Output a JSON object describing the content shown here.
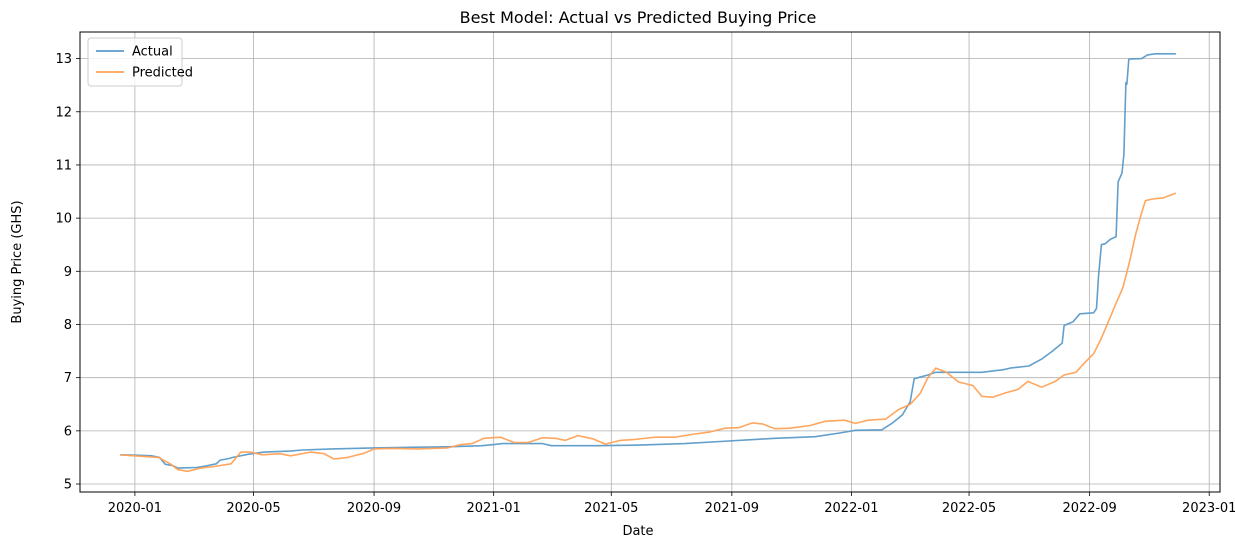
{
  "chart_data": {
    "type": "line",
    "title": "Best Model: Actual vs Predicted Buying Price",
    "xlabel": "Date",
    "ylabel": "Buying Price (GHS)",
    "x_is_date": true,
    "xlim": [
      "2019-11-06",
      "2023-01-12"
    ],
    "ylim": [
      4.85,
      13.5
    ],
    "xticks": [
      "2020-01",
      "2020-05",
      "2020-09",
      "2021-01",
      "2021-05",
      "2021-09",
      "2022-01",
      "2022-05",
      "2022-09",
      "2023-01"
    ],
    "xtick_dates": [
      "2020-01-01",
      "2020-05-01",
      "2020-09-01",
      "2021-01-01",
      "2021-05-01",
      "2021-09-01",
      "2022-01-01",
      "2022-05-01",
      "2022-09-01",
      "2023-01-01"
    ],
    "yticks": [
      5,
      6,
      7,
      8,
      9,
      10,
      11,
      12,
      13
    ],
    "grid": true,
    "legend_position": "top-left",
    "series": [
      {
        "name": "Actual",
        "color": "#5b9ac8",
        "points": [
          [
            "2019-12-17",
            5.55
          ],
          [
            "2020-01-06",
            5.54
          ],
          [
            "2020-01-18",
            5.53
          ],
          [
            "2020-01-26",
            5.5
          ],
          [
            "2020-02-01",
            5.37
          ],
          [
            "2020-02-08",
            5.35
          ],
          [
            "2020-02-14",
            5.3
          ],
          [
            "2020-03-04",
            5.31
          ],
          [
            "2020-03-14",
            5.34
          ],
          [
            "2020-03-24",
            5.38
          ],
          [
            "2020-03-28",
            5.45
          ],
          [
            "2020-04-06",
            5.48
          ],
          [
            "2020-04-10",
            5.5
          ],
          [
            "2020-04-26",
            5.56
          ],
          [
            "2020-05-12",
            5.6
          ],
          [
            "2020-06-07",
            5.62
          ],
          [
            "2020-06-20",
            5.64
          ],
          [
            "2020-07-20",
            5.66
          ],
          [
            "2020-09-01",
            5.68
          ],
          [
            "2020-10-07",
            5.69
          ],
          [
            "2020-11-15",
            5.7
          ],
          [
            "2020-12-20",
            5.72
          ],
          [
            "2020-12-31",
            5.74
          ],
          [
            "2021-01-10",
            5.76
          ],
          [
            "2021-02-20",
            5.76
          ],
          [
            "2021-03-01",
            5.72
          ],
          [
            "2021-04-15",
            5.72
          ],
          [
            "2021-05-25",
            5.73
          ],
          [
            "2021-06-10",
            5.74
          ],
          [
            "2021-07-15",
            5.76
          ],
          [
            "2021-08-20",
            5.8
          ],
          [
            "2021-09-25",
            5.84
          ],
          [
            "2021-10-15",
            5.86
          ],
          [
            "2021-11-25",
            5.89
          ],
          [
            "2021-12-20",
            5.96
          ],
          [
            "2022-01-05",
            6.01
          ],
          [
            "2022-02-01",
            6.02
          ],
          [
            "2022-02-12",
            6.15
          ],
          [
            "2022-02-22",
            6.3
          ],
          [
            "2022-03-02",
            6.55
          ],
          [
            "2022-03-06",
            6.98
          ],
          [
            "2022-03-20",
            7.05
          ],
          [
            "2022-03-28",
            7.1
          ],
          [
            "2022-05-14",
            7.1
          ],
          [
            "2022-06-05",
            7.15
          ],
          [
            "2022-06-12",
            7.18
          ],
          [
            "2022-07-01",
            7.22
          ],
          [
            "2022-07-14",
            7.35
          ],
          [
            "2022-07-25",
            7.5
          ],
          [
            "2022-08-04",
            7.65
          ],
          [
            "2022-08-06",
            7.98
          ],
          [
            "2022-08-15",
            8.05
          ],
          [
            "2022-08-22",
            8.2
          ],
          [
            "2022-09-05",
            8.22
          ],
          [
            "2022-09-08",
            8.3
          ],
          [
            "2022-09-10",
            8.9
          ],
          [
            "2022-09-13",
            9.5
          ],
          [
            "2022-09-17",
            9.52
          ],
          [
            "2022-09-22",
            9.6
          ],
          [
            "2022-09-28",
            9.65
          ],
          [
            "2022-09-30",
            10.68
          ],
          [
            "2022-10-04",
            10.85
          ],
          [
            "2022-10-06",
            11.2
          ],
          [
            "2022-10-08",
            12.55
          ],
          [
            "2022-10-09",
            12.52
          ],
          [
            "2022-10-11",
            12.99
          ],
          [
            "2022-10-24",
            13.0
          ],
          [
            "2022-10-30",
            13.07
          ],
          [
            "2022-11-07",
            13.09
          ],
          [
            "2022-11-28",
            13.09
          ]
        ]
      },
      {
        "name": "Predicted",
        "color": "#ffa156",
        "points": [
          [
            "2019-12-17",
            5.55
          ],
          [
            "2020-01-10",
            5.52
          ],
          [
            "2020-01-25",
            5.5
          ],
          [
            "2020-02-06",
            5.38
          ],
          [
            "2020-02-14",
            5.27
          ],
          [
            "2020-02-24",
            5.24
          ],
          [
            "2020-03-08",
            5.3
          ],
          [
            "2020-03-22",
            5.33
          ],
          [
            "2020-04-08",
            5.38
          ],
          [
            "2020-04-18",
            5.6
          ],
          [
            "2020-04-28",
            5.6
          ],
          [
            "2020-05-10",
            5.55
          ],
          [
            "2020-05-28",
            5.57
          ],
          [
            "2020-06-08",
            5.53
          ],
          [
            "2020-06-28",
            5.6
          ],
          [
            "2020-07-12",
            5.57
          ],
          [
            "2020-07-22",
            5.47
          ],
          [
            "2020-08-05",
            5.5
          ],
          [
            "2020-08-22",
            5.58
          ],
          [
            "2020-09-01",
            5.66
          ],
          [
            "2020-09-22",
            5.67
          ],
          [
            "2020-10-15",
            5.66
          ],
          [
            "2020-11-15",
            5.68
          ],
          [
            "2020-11-28",
            5.74
          ],
          [
            "2020-12-10",
            5.76
          ],
          [
            "2020-12-22",
            5.86
          ],
          [
            "2021-01-08",
            5.88
          ],
          [
            "2021-01-22",
            5.78
          ],
          [
            "2021-02-05",
            5.78
          ],
          [
            "2021-02-20",
            5.87
          ],
          [
            "2021-03-05",
            5.86
          ],
          [
            "2021-03-15",
            5.82
          ],
          [
            "2021-03-28",
            5.91
          ],
          [
            "2021-04-12",
            5.85
          ],
          [
            "2021-04-25",
            5.75
          ],
          [
            "2021-05-10",
            5.82
          ],
          [
            "2021-05-25",
            5.84
          ],
          [
            "2021-06-15",
            5.88
          ],
          [
            "2021-07-05",
            5.88
          ],
          [
            "2021-07-25",
            5.94
          ],
          [
            "2021-08-10",
            5.98
          ],
          [
            "2021-08-25",
            6.05
          ],
          [
            "2021-09-08",
            6.06
          ],
          [
            "2021-09-22",
            6.15
          ],
          [
            "2021-10-02",
            6.13
          ],
          [
            "2021-10-15",
            6.04
          ],
          [
            "2021-10-30",
            6.05
          ],
          [
            "2021-11-20",
            6.1
          ],
          [
            "2021-12-05",
            6.18
          ],
          [
            "2021-12-25",
            6.2
          ],
          [
            "2022-01-05",
            6.14
          ],
          [
            "2022-01-18",
            6.2
          ],
          [
            "2022-02-05",
            6.22
          ],
          [
            "2022-02-18",
            6.4
          ],
          [
            "2022-03-02",
            6.5
          ],
          [
            "2022-03-12",
            6.7
          ],
          [
            "2022-03-20",
            7.0
          ],
          [
            "2022-03-28",
            7.18
          ],
          [
            "2022-04-08",
            7.1
          ],
          [
            "2022-04-20",
            6.92
          ],
          [
            "2022-05-05",
            6.85
          ],
          [
            "2022-05-14",
            6.65
          ],
          [
            "2022-05-25",
            6.63
          ],
          [
            "2022-06-08",
            6.72
          ],
          [
            "2022-06-20",
            6.78
          ],
          [
            "2022-06-30",
            6.93
          ],
          [
            "2022-07-14",
            6.82
          ],
          [
            "2022-07-28",
            6.93
          ],
          [
            "2022-08-06",
            7.05
          ],
          [
            "2022-08-18",
            7.1
          ],
          [
            "2022-08-28",
            7.3
          ],
          [
            "2022-09-05",
            7.45
          ],
          [
            "2022-09-12",
            7.7
          ],
          [
            "2022-09-20",
            8.05
          ],
          [
            "2022-09-28",
            8.4
          ],
          [
            "2022-10-05",
            8.7
          ],
          [
            "2022-10-12",
            9.2
          ],
          [
            "2022-10-18",
            9.7
          ],
          [
            "2022-10-24",
            10.1
          ],
          [
            "2022-10-28",
            10.33
          ],
          [
            "2022-11-04",
            10.36
          ],
          [
            "2022-11-15",
            10.38
          ],
          [
            "2022-11-28",
            10.47
          ]
        ]
      }
    ]
  }
}
